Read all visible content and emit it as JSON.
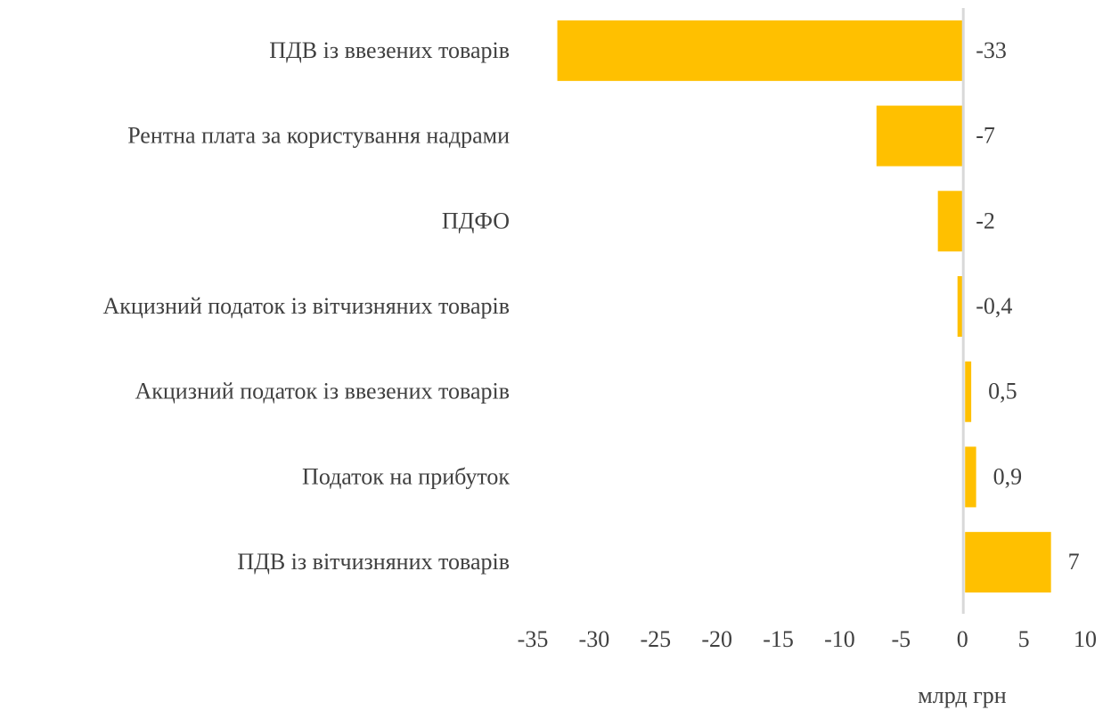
{
  "chart_data": {
    "type": "bar",
    "orientation": "horizontal",
    "categories": [
      "ПДВ із ввезених товарів",
      "Рентна плата за користування надрами",
      "ПДФО",
      "Акцизний податок із вітчизняних товарів",
      "Акцизний податок із ввезених товарів",
      "Податок на прибуток",
      "ПДВ із вітчизняних товарів"
    ],
    "values": [
      -33,
      -7,
      -2,
      -0.4,
      0.5,
      0.9,
      7
    ],
    "value_labels": [
      "-33",
      "-7",
      "-2",
      "-0,4",
      "0,5",
      "0,9",
      "7"
    ],
    "color": "#ffc000",
    "xlim": [
      -35,
      10
    ],
    "xticks": [
      -35,
      -30,
      -25,
      -20,
      -15,
      -10,
      -5,
      0,
      5,
      10
    ],
    "x_label": "млрд грн",
    "grid": false
  }
}
